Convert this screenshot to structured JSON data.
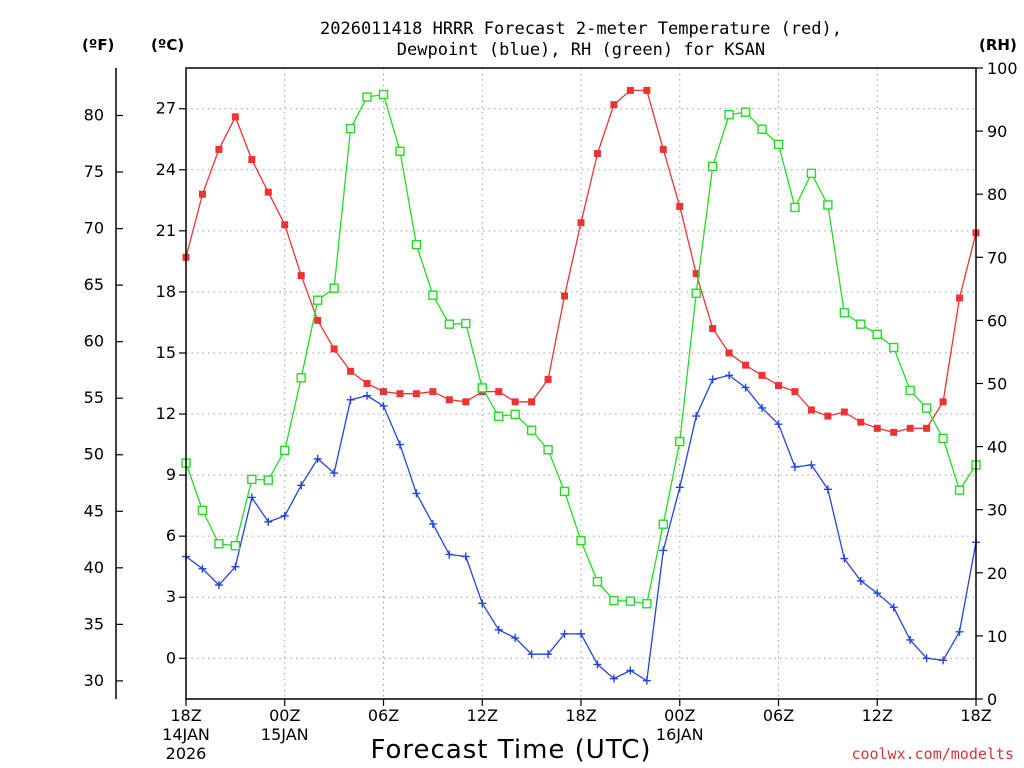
{
  "chart_data": {
    "type": "line",
    "title_line1": "2026011418 HRRR Forecast 2-meter Temperature (red),",
    "title_line2": "Dewpoint (blue), RH (green) for KSAN",
    "xlabel": "Forecast Time (UTC)",
    "watermark": "coolwx.com/modelts",
    "left_outer_axis_label": "(ºF)",
    "left_inner_axis_label": "(ºC)",
    "right_axis_label": "(RH)",
    "x_ticks": [
      {
        "hour": 0,
        "lines": [
          "18Z",
          "14JAN",
          "2026"
        ]
      },
      {
        "hour": 6,
        "lines": [
          "00Z",
          "15JAN"
        ]
      },
      {
        "hour": 12,
        "lines": [
          "06Z"
        ]
      },
      {
        "hour": 18,
        "lines": [
          "12Z"
        ]
      },
      {
        "hour": 24,
        "lines": [
          "18Z"
        ]
      },
      {
        "hour": 30,
        "lines": [
          "00Z",
          "16JAN"
        ]
      },
      {
        "hour": 36,
        "lines": [
          "06Z"
        ]
      },
      {
        "hour": 42,
        "lines": [
          "12Z"
        ]
      },
      {
        "hour": 48,
        "lines": [
          "18Z"
        ]
      }
    ],
    "xlim": [
      0,
      48
    ],
    "celsius_ylim": [
      -2,
      29
    ],
    "celsius_ticks": [
      0,
      3,
      6,
      9,
      12,
      15,
      18,
      21,
      24,
      27
    ],
    "fahrenheit_ticks": [
      30,
      35,
      40,
      45,
      50,
      55,
      60,
      65,
      70,
      75,
      80
    ],
    "rh_ylim": [
      0,
      100
    ],
    "rh_ticks": [
      0,
      10,
      20,
      30,
      40,
      50,
      60,
      70,
      80,
      90,
      100
    ],
    "grid": true,
    "series": [
      {
        "name": "2-meter Temperature",
        "unit": "C",
        "color": "#ee3333",
        "marker": "filled-square",
        "values": [
          19.7,
          22.8,
          25.0,
          26.6,
          24.5,
          22.9,
          21.3,
          18.8,
          16.6,
          15.2,
          14.1,
          13.5,
          13.1,
          13.0,
          13.0,
          13.1,
          12.7,
          12.6,
          13.1,
          13.1,
          12.6,
          12.6,
          13.7,
          17.8,
          21.4,
          24.8,
          27.2,
          27.9,
          27.9,
          25.0,
          22.2,
          18.9,
          16.2,
          15.0,
          14.4,
          13.9,
          13.4,
          13.1,
          12.2,
          11.9,
          12.1,
          11.6,
          11.3,
          11.1,
          11.3,
          11.3,
          12.6,
          17.7,
          20.9
        ]
      },
      {
        "name": "Dewpoint",
        "unit": "C",
        "color": "#2244dd",
        "marker": "plus",
        "values": [
          5.0,
          4.4,
          3.6,
          4.5,
          7.9,
          6.7,
          7.0,
          8.5,
          9.8,
          9.1,
          12.7,
          12.9,
          12.4,
          10.5,
          8.1,
          6.6,
          5.1,
          5.0,
          2.7,
          1.4,
          1.0,
          0.2,
          0.2,
          1.2,
          1.2,
          -0.3,
          -1.0,
          -0.6,
          -1.1,
          5.3,
          8.4,
          11.9,
          13.7,
          13.9,
          13.3,
          12.3,
          11.5,
          9.4,
          9.5,
          8.3,
          4.9,
          3.8,
          3.2,
          2.5,
          0.9,
          0.0,
          -0.1,
          1.3,
          5.7
        ]
      },
      {
        "name": "RH",
        "unit": "%",
        "color": "#22dd22",
        "marker": "open-square",
        "values": [
          37.4,
          29.9,
          24.6,
          24.3,
          34.8,
          34.7,
          39.4,
          50.9,
          63.2,
          65.1,
          90.4,
          95.4,
          95.8,
          86.8,
          72.0,
          64.0,
          59.4,
          59.5,
          49.3,
          44.8,
          45.1,
          42.6,
          39.5,
          32.9,
          25.1,
          18.6,
          15.6,
          15.5,
          15.1,
          27.7,
          40.8,
          64.3,
          84.4,
          92.6,
          93.0,
          90.3,
          87.9,
          77.9,
          83.3,
          78.3,
          61.2,
          59.4,
          57.8,
          55.7,
          48.9,
          46.1,
          41.3,
          33.1,
          37.1
        ]
      }
    ]
  }
}
